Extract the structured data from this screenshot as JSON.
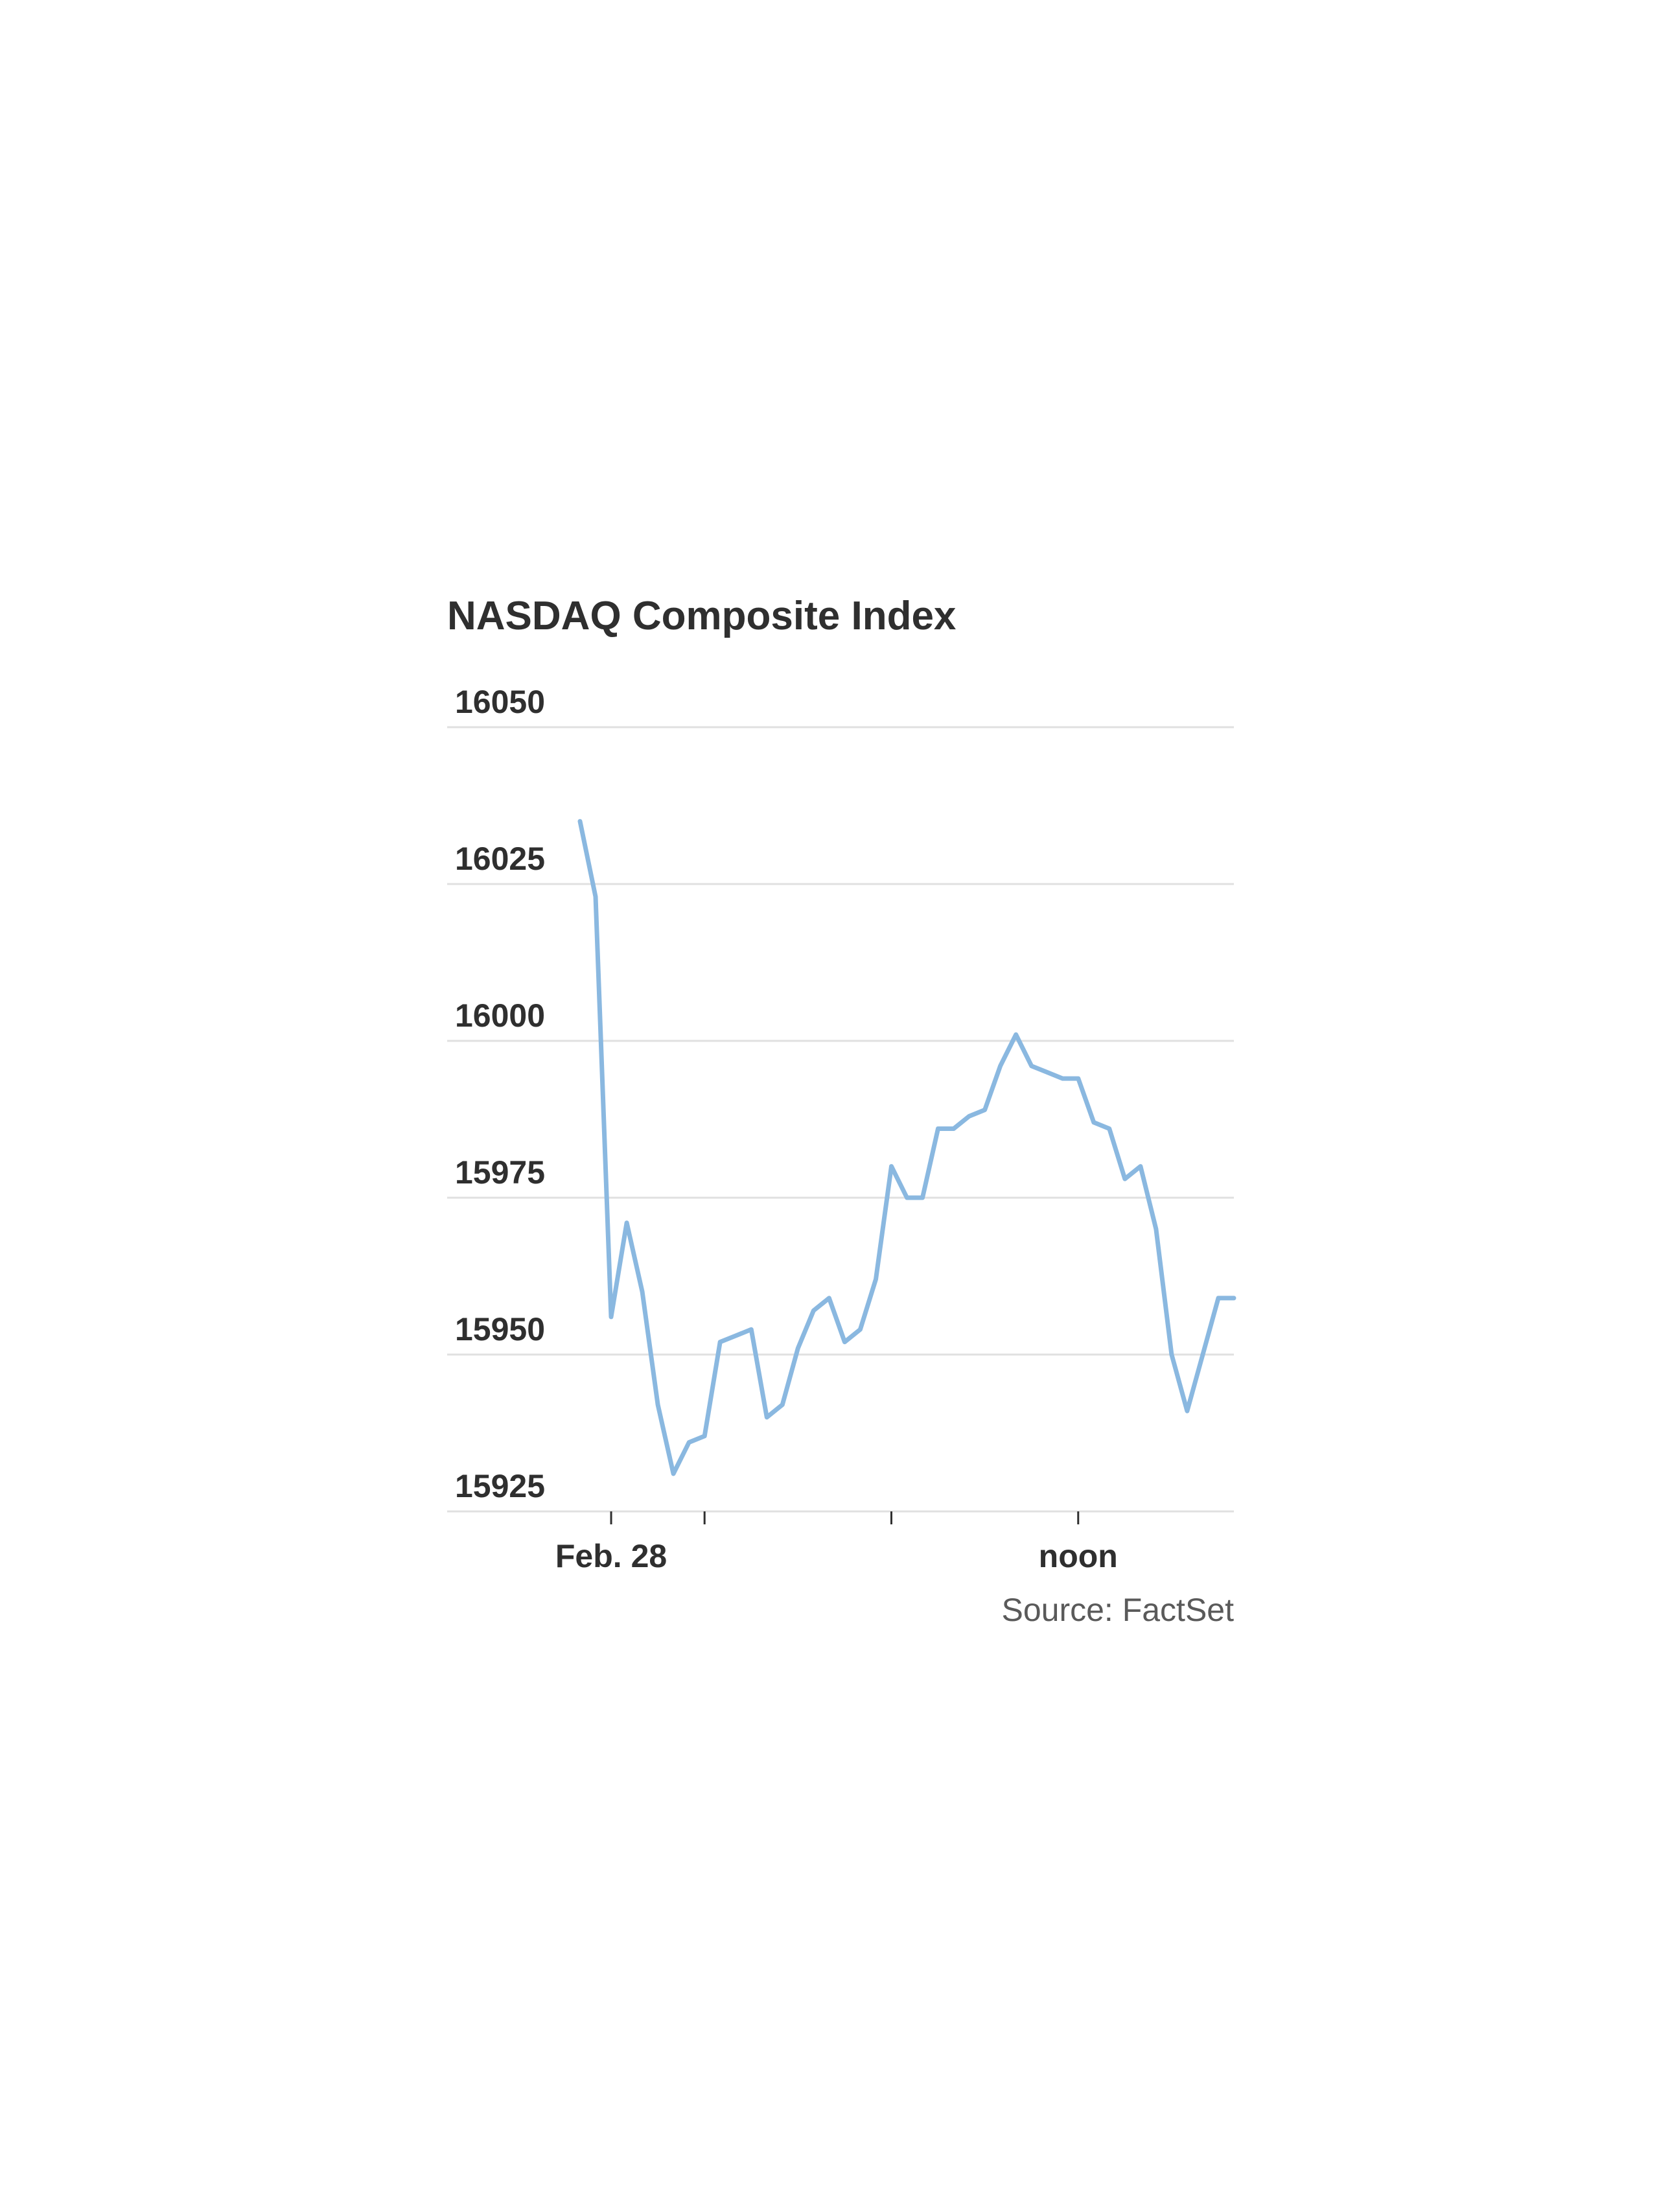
{
  "chart_data": {
    "type": "line",
    "title": "NASDAQ Composite Index",
    "source": "Source: FactSet",
    "ylim": [
      15925,
      16050
    ],
    "yticks": [
      16050,
      16025,
      16000,
      15975,
      15950,
      15925
    ],
    "grid": true,
    "colors": {
      "line": "#8ab8e0",
      "grid": "#e0e0e0",
      "text": "#2f2f2f",
      "source": "#5a5a5a"
    },
    "xticks": [
      {
        "label": "Feb. 28",
        "index": 2
      },
      {
        "label": "",
        "index": 8
      },
      {
        "label": "",
        "index": 20
      },
      {
        "label": "noon",
        "index": 32
      }
    ],
    "series": [
      {
        "values": [
          16035,
          16023,
          15956,
          15971,
          15960,
          15942,
          15931,
          15936,
          15937,
          15952,
          15953,
          15954,
          15940,
          15942,
          15951,
          15957,
          15959,
          15952,
          15954,
          15962,
          15980,
          15975,
          15975,
          15986,
          15986,
          15988,
          15989,
          15996,
          16001,
          15996,
          15995,
          15994,
          15994,
          15987,
          15986,
          15978,
          15980,
          15970,
          15950,
          15941,
          15950,
          15959,
          15959
        ]
      }
    ]
  }
}
